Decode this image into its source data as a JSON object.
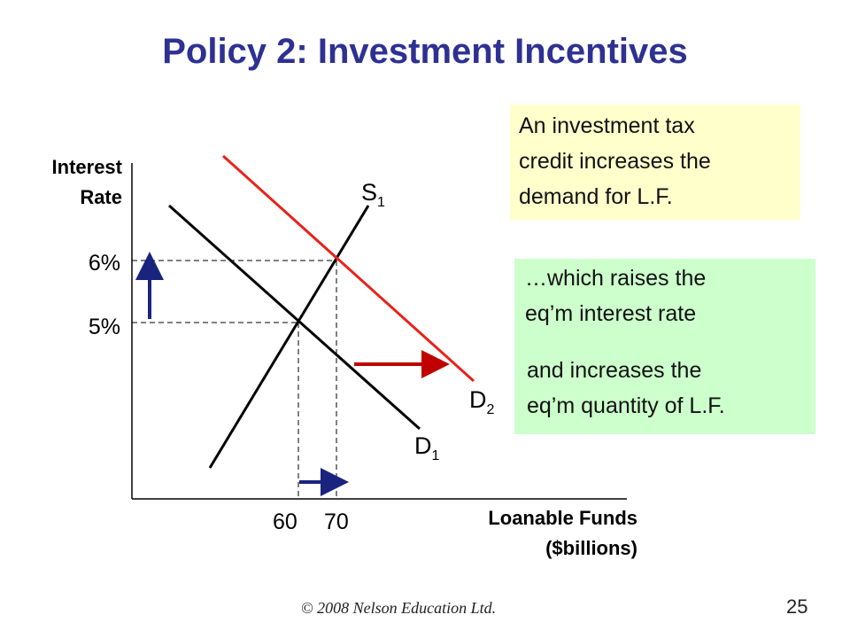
{
  "slide": {
    "title": "Policy 2:  Investment Incentives",
    "footer": "© 2008 Nelson Education Ltd.",
    "page_number": "25"
  },
  "callouts": {
    "top": [
      "An investment tax",
      "credit increases the",
      "demand for L.F."
    ],
    "middle": [
      "…which raises the",
      "eq’m interest rate"
    ],
    "bottom": [
      "and increases the",
      "eq’m quantity of L.F."
    ]
  },
  "colors": {
    "title": "#2e3192",
    "demand_shift": "#e8221a",
    "arrow_red": "#c00000",
    "arrow_blue": "#1a237e",
    "callout_yellow": "#ffffcc",
    "callout_green": "#ccffcc"
  },
  "chart_data": {
    "type": "line",
    "ylabel_lines": [
      "Interest",
      "Rate"
    ],
    "xlabel_lines": [
      "Loanable Funds",
      "($billions)"
    ],
    "y_ticks": [
      {
        "value": 6,
        "label": "6%"
      },
      {
        "value": 5,
        "label": "5%"
      }
    ],
    "x_ticks": [
      {
        "value": 60,
        "label": "60"
      },
      {
        "value": 70,
        "label": "70"
      }
    ],
    "series": [
      {
        "name": "S",
        "sub": "1",
        "role": "supply",
        "color": "#000000"
      },
      {
        "name": "D",
        "sub": "1",
        "role": "demand-initial",
        "color": "#000000"
      },
      {
        "name": "D",
        "sub": "2",
        "role": "demand-shifted",
        "color": "#e8221a"
      }
    ],
    "equilibria": [
      {
        "x": 60,
        "y": 5
      },
      {
        "x": 70,
        "y": 6
      }
    ],
    "arrows": [
      {
        "meaning": "demand shifts right",
        "color": "#c00000"
      },
      {
        "meaning": "interest rate rises",
        "color": "#1a237e"
      },
      {
        "meaning": "quantity rises",
        "color": "#1a237e"
      }
    ],
    "grid": false
  }
}
